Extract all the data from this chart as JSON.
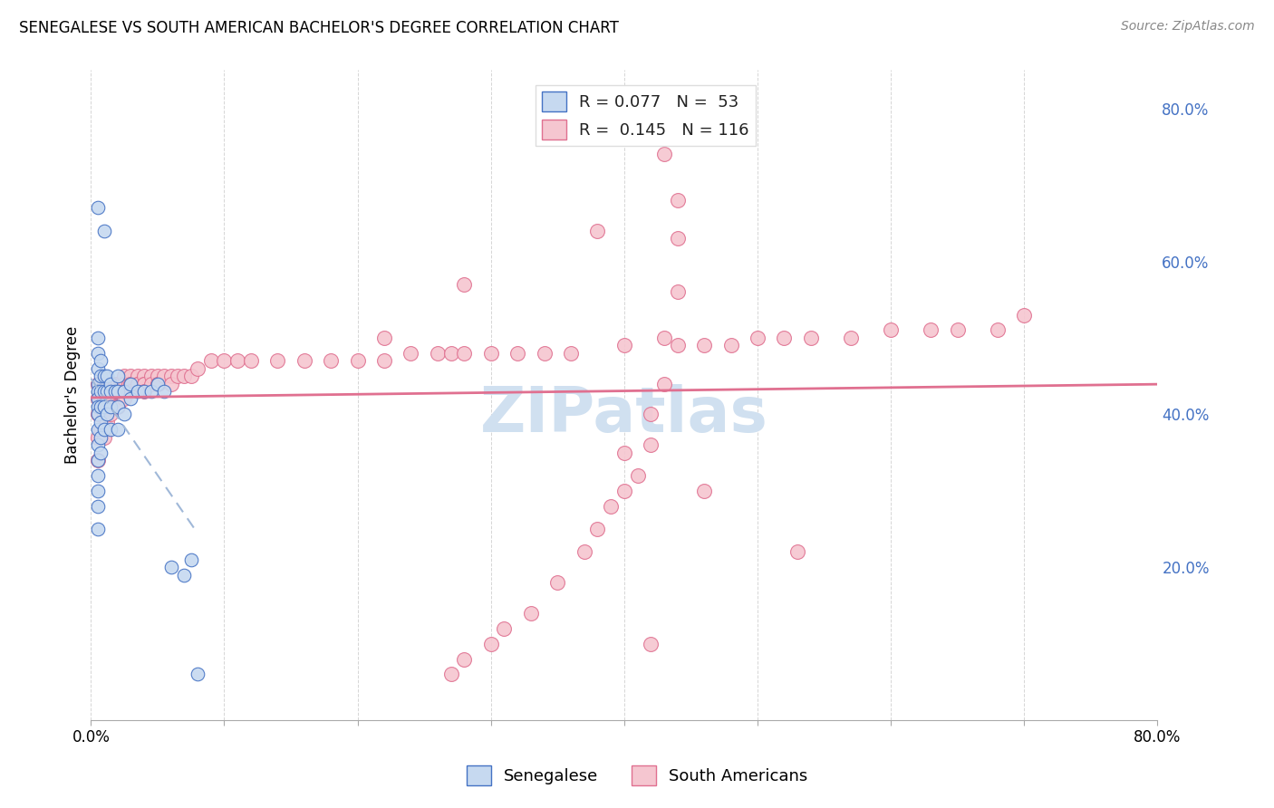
{
  "title": "SENEGALESE VS SOUTH AMERICAN BACHELOR'S DEGREE CORRELATION CHART",
  "source": "Source: ZipAtlas.com",
  "ylabel": "Bachelor's Degree",
  "xlim": [
    0.0,
    0.8
  ],
  "ylim": [
    0.0,
    0.85
  ],
  "xtick_positions": [
    0.0,
    0.1,
    0.2,
    0.3,
    0.4,
    0.5,
    0.6,
    0.7,
    0.8
  ],
  "xticklabels": [
    "0.0%",
    "",
    "",
    "",
    "",
    "",
    "",
    "",
    "80.0%"
  ],
  "ytick_positions": [
    0.2,
    0.4,
    0.6,
    0.8
  ],
  "ytick_labels": [
    "20.0%",
    "40.0%",
    "60.0%",
    "80.0%"
  ],
  "legend_text_1": "R = 0.077   N =  53",
  "legend_text_2": "R =  0.145   N = 116",
  "legend_labels": [
    "Senegalese",
    "South Americans"
  ],
  "blue_face": "#c6d9f0",
  "blue_edge": "#4472c4",
  "pink_face": "#f5c6d0",
  "pink_edge": "#e07090",
  "trend_blue_color": "#a0b8d8",
  "trend_pink_color": "#e07090",
  "watermark": "ZIPatlas",
  "watermark_color": "#d0e0f0",
  "background_color": "#ffffff",
  "grid_color": "#cccccc",
  "senegalese_x": [
    0.005,
    0.005,
    0.005,
    0.005,
    0.005,
    0.005,
    0.005,
    0.005,
    0.005,
    0.005,
    0.005,
    0.005,
    0.005,
    0.005,
    0.005,
    0.007,
    0.007,
    0.007,
    0.007,
    0.007,
    0.007,
    0.007,
    0.01,
    0.01,
    0.01,
    0.01,
    0.012,
    0.012,
    0.012,
    0.015,
    0.015,
    0.015,
    0.015,
    0.018,
    0.02,
    0.02,
    0.02,
    0.02,
    0.025,
    0.025,
    0.03,
    0.03,
    0.035,
    0.04,
    0.045,
    0.05,
    0.055,
    0.06,
    0.07,
    0.075,
    0.08,
    0.005,
    0.01
  ],
  "senegalese_y": [
    0.5,
    0.48,
    0.46,
    0.44,
    0.43,
    0.42,
    0.41,
    0.4,
    0.38,
    0.36,
    0.34,
    0.32,
    0.3,
    0.28,
    0.25,
    0.47,
    0.45,
    0.43,
    0.41,
    0.39,
    0.37,
    0.35,
    0.45,
    0.43,
    0.41,
    0.38,
    0.45,
    0.43,
    0.4,
    0.44,
    0.43,
    0.41,
    0.38,
    0.43,
    0.45,
    0.43,
    0.41,
    0.38,
    0.43,
    0.4,
    0.44,
    0.42,
    0.43,
    0.43,
    0.43,
    0.44,
    0.43,
    0.2,
    0.19,
    0.21,
    0.06,
    0.67,
    0.64
  ],
  "south_american_x": [
    0.005,
    0.005,
    0.005,
    0.005,
    0.005,
    0.007,
    0.007,
    0.007,
    0.01,
    0.01,
    0.01,
    0.01,
    0.01,
    0.012,
    0.012,
    0.012,
    0.012,
    0.015,
    0.015,
    0.015,
    0.015,
    0.015,
    0.018,
    0.018,
    0.018,
    0.02,
    0.02,
    0.02,
    0.02,
    0.022,
    0.022,
    0.025,
    0.025,
    0.025,
    0.025,
    0.028,
    0.028,
    0.03,
    0.03,
    0.03,
    0.03,
    0.035,
    0.035,
    0.035,
    0.04,
    0.04,
    0.04,
    0.04,
    0.045,
    0.045,
    0.05,
    0.05,
    0.05,
    0.055,
    0.06,
    0.06,
    0.065,
    0.07,
    0.075,
    0.08,
    0.09,
    0.1,
    0.11,
    0.12,
    0.14,
    0.16,
    0.18,
    0.2,
    0.22,
    0.24,
    0.26,
    0.27,
    0.28,
    0.3,
    0.32,
    0.34,
    0.36,
    0.4,
    0.44,
    0.46,
    0.48,
    0.5,
    0.52,
    0.54,
    0.57,
    0.6,
    0.63,
    0.65,
    0.68,
    0.7,
    0.38,
    0.28,
    0.22,
    0.4,
    0.46,
    0.53,
    0.42,
    0.44,
    0.43,
    0.44,
    0.44,
    0.43,
    0.43,
    0.42,
    0.42,
    0.41,
    0.4,
    0.39,
    0.38,
    0.37,
    0.35,
    0.33,
    0.31,
    0.3,
    0.28,
    0.27
  ],
  "south_american_y": [
    0.44,
    0.42,
    0.4,
    0.37,
    0.34,
    0.44,
    0.42,
    0.38,
    0.44,
    0.43,
    0.42,
    0.4,
    0.37,
    0.44,
    0.43,
    0.42,
    0.39,
    0.44,
    0.44,
    0.43,
    0.42,
    0.4,
    0.44,
    0.43,
    0.41,
    0.44,
    0.44,
    0.43,
    0.41,
    0.44,
    0.43,
    0.45,
    0.44,
    0.43,
    0.42,
    0.44,
    0.43,
    0.45,
    0.44,
    0.44,
    0.43,
    0.45,
    0.44,
    0.44,
    0.45,
    0.44,
    0.44,
    0.43,
    0.45,
    0.44,
    0.45,
    0.44,
    0.44,
    0.45,
    0.45,
    0.44,
    0.45,
    0.45,
    0.45,
    0.46,
    0.47,
    0.47,
    0.47,
    0.47,
    0.47,
    0.47,
    0.47,
    0.47,
    0.47,
    0.48,
    0.48,
    0.48,
    0.48,
    0.48,
    0.48,
    0.48,
    0.48,
    0.49,
    0.49,
    0.49,
    0.49,
    0.5,
    0.5,
    0.5,
    0.5,
    0.51,
    0.51,
    0.51,
    0.51,
    0.53,
    0.64,
    0.57,
    0.5,
    0.35,
    0.3,
    0.22,
    0.1,
    0.68,
    0.74,
    0.63,
    0.56,
    0.5,
    0.44,
    0.4,
    0.36,
    0.32,
    0.3,
    0.28,
    0.25,
    0.22,
    0.18,
    0.14,
    0.12,
    0.1,
    0.08,
    0.06
  ]
}
